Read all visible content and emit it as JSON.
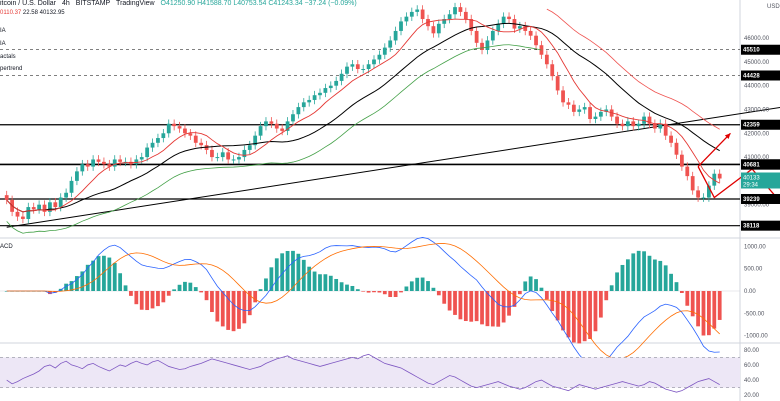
{
  "header": {
    "symbol": "itcoin / U.S. Dollar",
    "interval": "4h",
    "exchange": "BITSTAMP",
    "source": "TradingView",
    "ohlc": "O41250.90 H41588.70 L40753.54 C41243.34 −37.24 (−0.09%)",
    "ma_values": [
      "0110.37",
      "22.58",
      "40132.95"
    ]
  },
  "indicators": [
    "IA",
    "IA",
    "actals",
    "pertrend"
  ],
  "macd_label": "ACD",
  "price_axis": {
    "currency": "USD",
    "ticks": [
      "46000.00",
      "45000.00",
      "44000.00",
      "43000.00",
      "42000.00",
      "41000.00",
      "40000.00",
      "39000.00"
    ],
    "labels": [
      {
        "text": "45510",
        "value": 45510
      },
      {
        "text": "44428",
        "value": 44428
      },
      {
        "text": "42359",
        "value": 42359
      },
      {
        "text": "40699",
        "value": 40699
      },
      {
        "text": "40681",
        "value": 40681
      },
      {
        "text": "39239",
        "value": 39239
      },
      {
        "text": "38118",
        "value": 38118
      }
    ],
    "current_price": "40133",
    "countdown": "29:34"
  },
  "macd_axis": {
    "ticks": [
      "1000.00",
      "500.00",
      "0.00",
      "-500.00",
      "-1000.00"
    ]
  },
  "rsi_axis": {
    "ticks": [
      "80.00",
      "60.00",
      "40.00",
      "20.00"
    ],
    "bands": [
      70,
      30
    ]
  },
  "colors": {
    "up": "#26a69a",
    "down": "#ef5350",
    "ema_fast": "#e53935",
    "ma_slow": "#000000",
    "supertrend_up": "#43a047",
    "supertrend_down": "#ef5350",
    "level_line": "#000000",
    "forecast": "#e00000",
    "rsi": "#7e57c2",
    "macd": "#2962ff",
    "signal": "#ff6d00"
  },
  "chart_data": {
    "type": "candlestick",
    "price_levels": [
      45510,
      44428,
      42359,
      40699,
      40681,
      39239,
      38118
    ],
    "trendline": [
      [
        0,
        38050
      ],
      [
        155,
        43500
      ]
    ],
    "forecast_path": [
      [
        128,
        40600
      ],
      [
        134,
        42000
      ]
    ],
    "forecast_path_2": [
      [
        128,
        40600
      ],
      [
        131,
        39300
      ],
      [
        138,
        40500
      ],
      [
        147,
        38118
      ]
    ],
    "closes": [
      39200,
      38700,
      38500,
      38400,
      38900,
      38800,
      39000,
      38700,
      39100,
      38900,
      39300,
      39500,
      40000,
      40400,
      40700,
      40600,
      40900,
      40800,
      40700,
      40600,
      40900,
      40800,
      40800,
      40700,
      40900,
      41000,
      41400,
      41600,
      41800,
      42000,
      42400,
      42300,
      42200,
      42000,
      41900,
      41600,
      41500,
      41300,
      41000,
      41000,
      41200,
      40900,
      40900,
      41000,
      41300,
      41500,
      41900,
      42300,
      42500,
      42400,
      42200,
      42100,
      42500,
      42800,
      43100,
      43300,
      43400,
      43600,
      43700,
      43900,
      44000,
      44200,
      44500,
      44800,
      44900,
      44700,
      44700,
      44900,
      45100,
      45300,
      45600,
      45900,
      46300,
      46700,
      46900,
      47100,
      47200,
      46800,
      46500,
      46200,
      46600,
      46800,
      47000,
      47300,
      47100,
      46800,
      46300,
      45800,
      45500,
      45900,
      46300,
      46600,
      46900,
      46800,
      46400,
      46500,
      46300,
      46100,
      45700,
      45300,
      44900,
      44400,
      43800,
      43300,
      43200,
      42900,
      43000,
      43100,
      42600,
      42700,
      42900,
      43000,
      42700,
      42400,
      42300,
      42500,
      42300,
      42400,
      42700,
      42400,
      42200,
      42400,
      41900,
      41600,
      41100,
      40600,
      40200,
      39600,
      39300,
      39300,
      39800,
      40300,
      40100
    ],
    "macd": {
      "range": [
        -1100,
        1100
      ]
    },
    "rsi": {
      "values": [
        40,
        35,
        38,
        42,
        45,
        48,
        52,
        58,
        60,
        56,
        62,
        65,
        60,
        58,
        55,
        60,
        62,
        58,
        55,
        52,
        56,
        60,
        58,
        62,
        65,
        62,
        60,
        64,
        66,
        62,
        58,
        56,
        54,
        55,
        58,
        60,
        62,
        65,
        68,
        66,
        64,
        62,
        60,
        58,
        56,
        54,
        56,
        58,
        62,
        65,
        68,
        70,
        72,
        68,
        66,
        64,
        62,
        60,
        58,
        60,
        62,
        64,
        66,
        68,
        70,
        68,
        72,
        74,
        70,
        66,
        62,
        60,
        58,
        56,
        52,
        48,
        44,
        40,
        36,
        34,
        38,
        42,
        46,
        44,
        40,
        36,
        32,
        30,
        32,
        34,
        36,
        38,
        35,
        32,
        30,
        28,
        30,
        34,
        38,
        40,
        36,
        32,
        30,
        28,
        26,
        30,
        34,
        32,
        30,
        28,
        30,
        32,
        34,
        36,
        38,
        36,
        34,
        32,
        34,
        38,
        36,
        32,
        28,
        26,
        24,
        26,
        30,
        34,
        38,
        40,
        42,
        38,
        34
      ],
      "range": [
        15,
        85
      ]
    }
  }
}
